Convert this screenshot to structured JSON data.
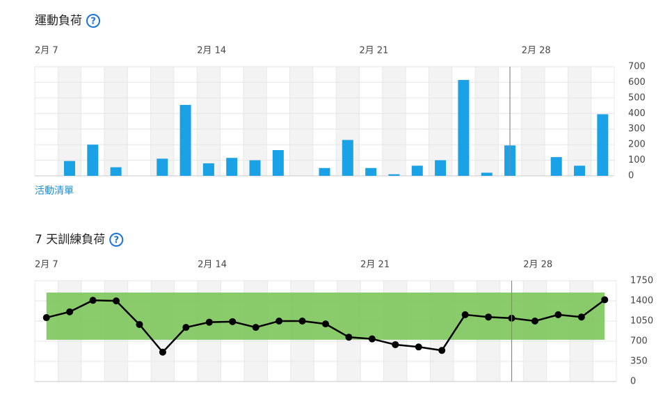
{
  "help_icon": "?",
  "link": "活動清單",
  "chart_data": [
    {
      "type": "bar",
      "title": "運動負荷",
      "categories": [
        "2月 7",
        null,
        null,
        null,
        null,
        null,
        null,
        "2月 14",
        null,
        null,
        null,
        null,
        null,
        null,
        "2月 21",
        null,
        null,
        null,
        null,
        null,
        null,
        "2月 28",
        null,
        null,
        null
      ],
      "values": [
        0,
        95,
        200,
        55,
        0,
        110,
        455,
        80,
        115,
        100,
        165,
        0,
        50,
        230,
        50,
        10,
        65,
        100,
        615,
        20,
        195,
        0,
        120,
        65,
        395
      ],
      "color": "#1ba1e6",
      "ylim": [
        0,
        700
      ],
      "yticks": [
        0,
        100,
        200,
        300,
        400,
        500,
        600,
        700
      ],
      "grid": true
    },
    {
      "type": "line",
      "title": "7 天訓練負荷",
      "categories": [
        "2月 7",
        null,
        null,
        null,
        null,
        null,
        null,
        "2月 14",
        null,
        null,
        null,
        null,
        null,
        null,
        "2月 21",
        null,
        null,
        null,
        null,
        null,
        null,
        "2月 28",
        null,
        null,
        null
      ],
      "values": [
        1110,
        1210,
        1410,
        1400,
        990,
        510,
        940,
        1030,
        1040,
        940,
        1050,
        1050,
        1000,
        770,
        740,
        640,
        600,
        540,
        1160,
        1120,
        1100,
        1050,
        1160,
        1120,
        1420
      ],
      "color": "#000000",
      "band": {
        "from": 725,
        "to": 1545,
        "color": "#7dc65c"
      },
      "ylim": [
        0,
        1750
      ],
      "yticks": [
        0,
        350,
        700,
        1050,
        1400,
        1750
      ],
      "grid": true
    }
  ]
}
